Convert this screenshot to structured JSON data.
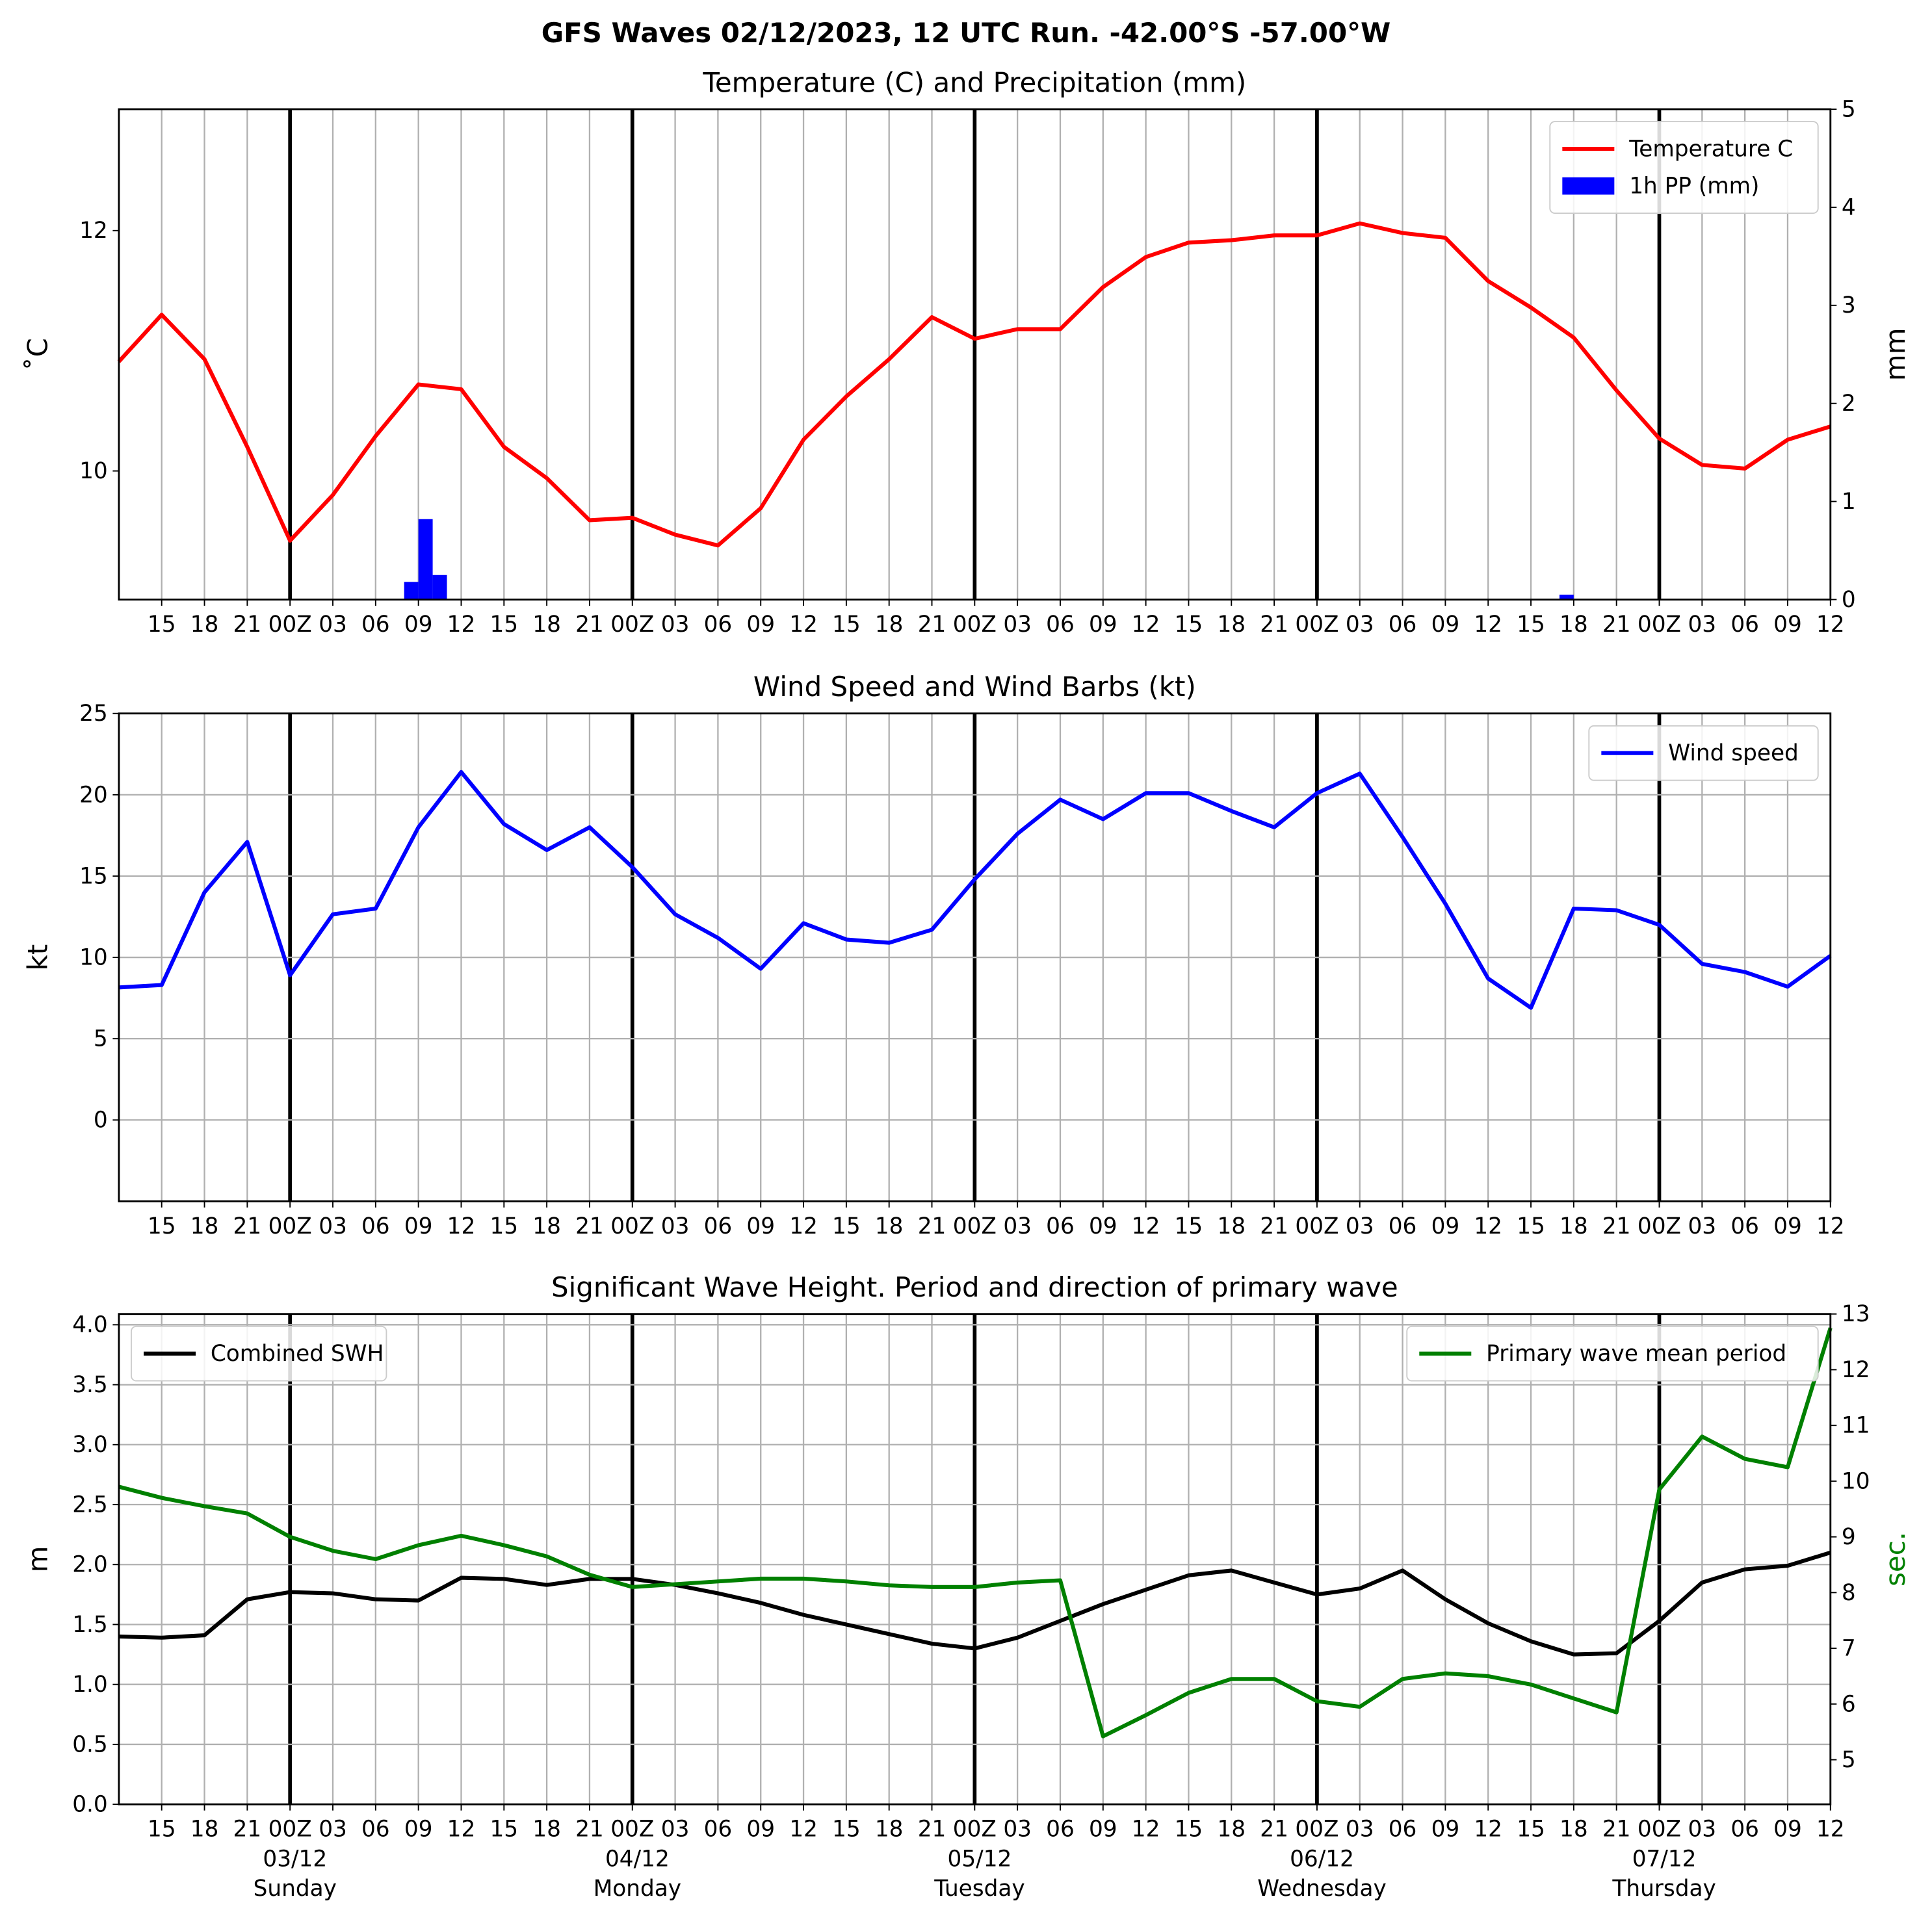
{
  "title": "GFS Waves 02/12/2023, 12 UTC Run. -42.00°S -57.00°W",
  "xaxis": {
    "xlim": [
      0,
      120
    ],
    "xticks": [
      {
        "value": 3,
        "label": "15"
      },
      {
        "value": 6,
        "label": "18"
      },
      {
        "value": 9,
        "label": "21"
      },
      {
        "value": 12,
        "label": "00Z"
      },
      {
        "value": 15,
        "label": "03"
      },
      {
        "value": 18,
        "label": "06"
      },
      {
        "value": 21,
        "label": "09"
      },
      {
        "value": 24,
        "label": "12"
      },
      {
        "value": 27,
        "label": "15"
      },
      {
        "value": 30,
        "label": "18"
      },
      {
        "value": 33,
        "label": "21"
      },
      {
        "value": 36,
        "label": "00Z"
      },
      {
        "value": 39,
        "label": "03"
      },
      {
        "value": 42,
        "label": "06"
      },
      {
        "value": 45,
        "label": "09"
      },
      {
        "value": 48,
        "label": "12"
      },
      {
        "value": 51,
        "label": "15"
      },
      {
        "value": 54,
        "label": "18"
      },
      {
        "value": 57,
        "label": "21"
      },
      {
        "value": 60,
        "label": "00Z"
      },
      {
        "value": 63,
        "label": "03"
      },
      {
        "value": 66,
        "label": "06"
      },
      {
        "value": 69,
        "label": "09"
      },
      {
        "value": 72,
        "label": "12"
      },
      {
        "value": 75,
        "label": "15"
      },
      {
        "value": 78,
        "label": "18"
      },
      {
        "value": 81,
        "label": "21"
      },
      {
        "value": 84,
        "label": "00Z"
      },
      {
        "value": 87,
        "label": "03"
      },
      {
        "value": 90,
        "label": "06"
      },
      {
        "value": 93,
        "label": "09"
      },
      {
        "value": 96,
        "label": "12"
      },
      {
        "value": 99,
        "label": "15"
      },
      {
        "value": 102,
        "label": "18"
      },
      {
        "value": 105,
        "label": "21"
      },
      {
        "value": 108,
        "label": "00Z"
      },
      {
        "value": 111,
        "label": "03"
      },
      {
        "value": 114,
        "label": "06"
      },
      {
        "value": 117,
        "label": "09"
      },
      {
        "value": 120,
        "label": "12"
      }
    ],
    "day_ticks": [
      {
        "value": 12,
        "date": "03/12",
        "day": "Sunday"
      },
      {
        "value": 36,
        "date": "04/12",
        "day": "Monday"
      },
      {
        "value": 60,
        "date": "05/12",
        "day": "Tuesday"
      },
      {
        "value": 84,
        "date": "06/12",
        "day": "Wednesday"
      },
      {
        "value": 108,
        "date": "07/12",
        "day": "Thursday"
      }
    ]
  },
  "chart_data": [
    {
      "type": "line",
      "title": "Temperature (C) and Precipitation (mm)",
      "ylabel": "˚C",
      "y2label": "mm",
      "ylim": [
        8.93,
        13.01
      ],
      "yticks": [
        10,
        12
      ],
      "y2lim": [
        0,
        5
      ],
      "y2ticks": [
        0,
        1,
        2,
        3,
        4,
        5
      ],
      "grid": "x",
      "series": [
        {
          "name": "Temperature C",
          "type": "line",
          "color": "#ff0000",
          "legend": "upper right",
          "x": [
            0,
            3,
            6,
            9,
            12,
            15,
            18,
            21,
            24,
            27,
            30,
            33,
            36,
            39,
            42,
            45,
            48,
            51,
            54,
            57,
            60,
            63,
            66,
            69,
            72,
            75,
            78,
            81,
            84,
            87,
            90,
            93,
            96,
            99,
            102,
            105,
            108,
            111,
            114,
            117,
            120
          ],
          "values": [
            10.91,
            11.3,
            10.93,
            10.2,
            9.42,
            9.8,
            10.29,
            10.72,
            10.68,
            10.2,
            9.94,
            9.59,
            9.61,
            9.47,
            9.38,
            9.69,
            10.26,
            10.62,
            10.93,
            11.28,
            11.1,
            11.18,
            11.18,
            11.53,
            11.78,
            11.9,
            11.92,
            11.96,
            11.96,
            12.06,
            11.98,
            11.94,
            11.58,
            11.36,
            11.11,
            10.67,
            10.27,
            10.05,
            10.02,
            10.26,
            10.37
          ]
        },
        {
          "name": "1h PP (mm)",
          "type": "bar",
          "color": "#0000ff",
          "axis": "y2",
          "legend": "upper right",
          "x": [
            20,
            21,
            22,
            101
          ],
          "values": [
            0.18,
            0.82,
            0.25,
            0.05
          ]
        }
      ]
    },
    {
      "type": "line",
      "title": "Wind Speed and Wind Barbs (kt)",
      "ylabel": "kt",
      "ylim": [
        -5,
        25
      ],
      "yticks": [
        0,
        5,
        10,
        15,
        20,
        25
      ],
      "grid": "both",
      "series": [
        {
          "name": "Wind speed",
          "type": "line",
          "color": "#0000ff",
          "legend": "upper right",
          "x": [
            0,
            3,
            6,
            9,
            12,
            15,
            18,
            21,
            24,
            27,
            30,
            33,
            36,
            39,
            42,
            45,
            48,
            51,
            54,
            57,
            60,
            63,
            66,
            69,
            72,
            75,
            78,
            81,
            84,
            87,
            90,
            93,
            96,
            99,
            102,
            105,
            108,
            111,
            114,
            117,
            120
          ],
          "values": [
            8.15,
            8.3,
            14.0,
            17.1,
            8.9,
            12.65,
            13.0,
            18.0,
            21.4,
            18.2,
            16.6,
            18.0,
            15.55,
            12.65,
            11.2,
            9.3,
            12.1,
            11.1,
            10.9,
            11.7,
            14.8,
            17.6,
            19.7,
            18.5,
            20.1,
            20.1,
            19.0,
            18.0,
            20.1,
            21.3,
            17.4,
            13.3,
            8.7,
            6.9,
            13.0,
            12.9,
            12.0,
            9.6,
            9.1,
            8.2,
            10.1
          ]
        }
      ]
    },
    {
      "type": "line",
      "title": "Significant Wave Height. Period and direction of primary wave",
      "ylabel": "m",
      "y2label": "sec.",
      "y2color": "#008000",
      "ylim": [
        0,
        4.09
      ],
      "yticks": [
        {
          "value": 0,
          "label": "0.0"
        },
        {
          "value": 0.5,
          "label": "0.5"
        },
        {
          "value": 1,
          "label": "1.0"
        },
        {
          "value": 1.5,
          "label": "1.5"
        },
        {
          "value": 2,
          "label": "2.0"
        },
        {
          "value": 2.5,
          "label": "2.5"
        },
        {
          "value": 3,
          "label": "3.0"
        },
        {
          "value": 3.5,
          "label": "3.5"
        },
        {
          "value": 4,
          "label": "4.0"
        }
      ],
      "y2lim": [
        4.2,
        13.0
      ],
      "y2ticks": [
        5,
        6,
        7,
        8,
        9,
        10,
        11,
        12,
        13
      ],
      "grid": "both",
      "series": [
        {
          "name": "Combined SWH",
          "type": "line",
          "color": "#000000",
          "legend": "upper left",
          "x": [
            0,
            3,
            6,
            9,
            12,
            15,
            18,
            21,
            24,
            27,
            30,
            33,
            36,
            39,
            42,
            45,
            48,
            51,
            54,
            57,
            60,
            63,
            66,
            69,
            72,
            75,
            78,
            81,
            84,
            87,
            90,
            93,
            96,
            99,
            102,
            105,
            108,
            111,
            114,
            117,
            120
          ],
          "values": [
            1.4,
            1.39,
            1.41,
            1.71,
            1.77,
            1.76,
            1.71,
            1.7,
            1.89,
            1.88,
            1.83,
            1.88,
            1.88,
            1.83,
            1.76,
            1.68,
            1.58,
            1.5,
            1.42,
            1.34,
            1.3,
            1.39,
            1.53,
            1.67,
            1.79,
            1.91,
            1.95,
            1.85,
            1.75,
            1.8,
            1.95,
            1.71,
            1.51,
            1.36,
            1.25,
            1.26,
            1.53,
            1.85,
            1.96,
            1.99,
            2.1
          ]
        },
        {
          "name": "Primary wave mean period",
          "type": "line",
          "color": "#008000",
          "axis": "y2",
          "legend": "upper right",
          "x": [
            0,
            3,
            6,
            9,
            12,
            15,
            18,
            21,
            24,
            27,
            30,
            33,
            36,
            39,
            42,
            45,
            48,
            51,
            54,
            57,
            60,
            63,
            66,
            69,
            72,
            75,
            78,
            81,
            84,
            87,
            90,
            93,
            96,
            99,
            102,
            105,
            108,
            111,
            114,
            117,
            120
          ],
          "values": [
            9.9,
            9.7,
            9.55,
            9.42,
            9.0,
            8.75,
            8.6,
            8.85,
            9.02,
            8.85,
            8.65,
            8.32,
            8.1,
            8.15,
            8.2,
            8.25,
            8.25,
            8.2,
            8.13,
            8.1,
            8.1,
            8.18,
            8.22,
            5.42,
            5.8,
            6.2,
            6.45,
            6.45,
            6.05,
            5.95,
            6.45,
            6.55,
            6.5,
            6.35,
            6.1,
            5.85,
            9.85,
            10.8,
            10.4,
            10.25,
            12.75
          ]
        }
      ]
    }
  ]
}
